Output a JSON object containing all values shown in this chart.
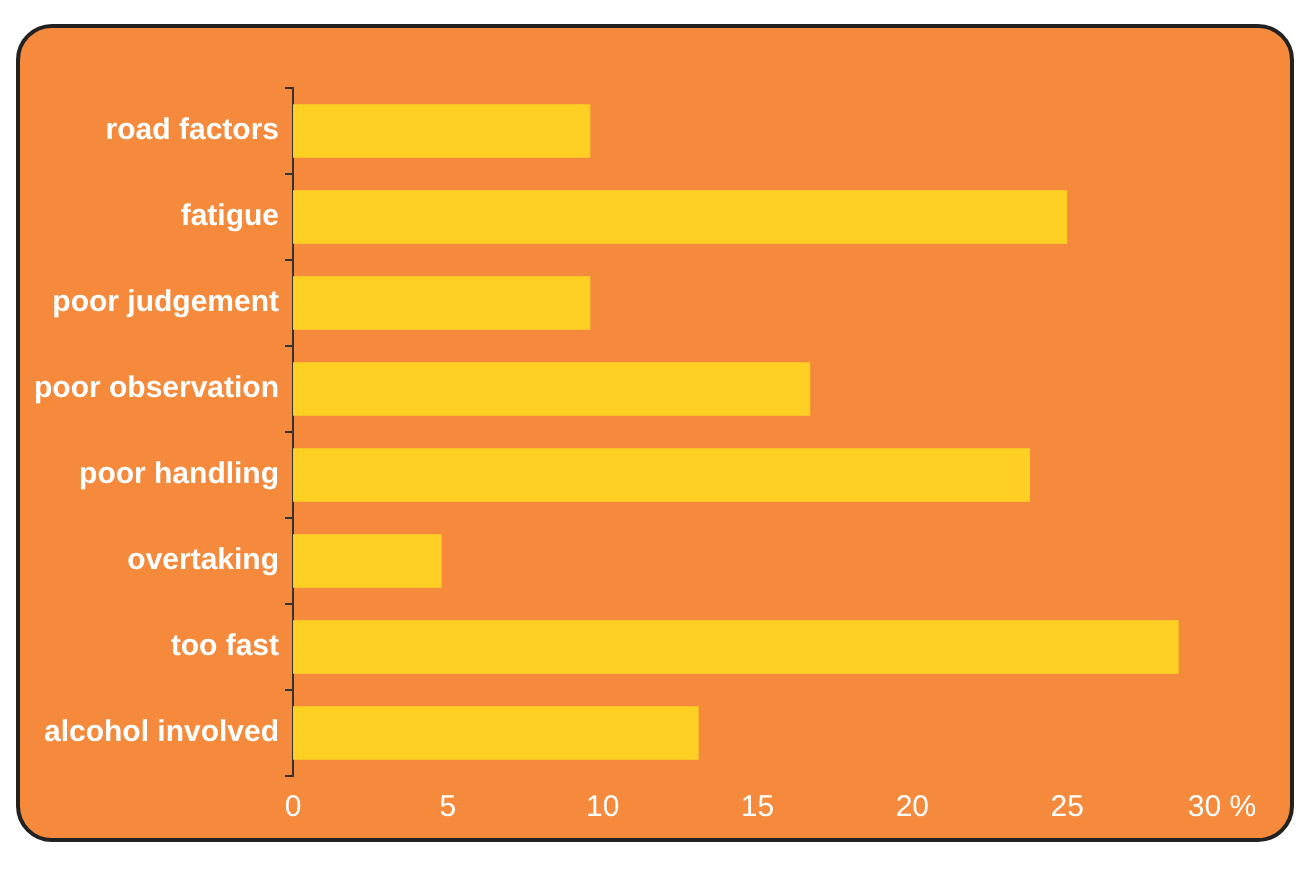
{
  "chart_data": {
    "type": "bar",
    "orientation": "horizontal",
    "categories": [
      "road factors",
      "fatigue",
      "poor judgement",
      "poor observation",
      "poor handling",
      "overtaking",
      "too fast",
      "alcohol involved"
    ],
    "values": [
      9.6,
      25,
      9.6,
      16.7,
      23.8,
      4.8,
      28.6,
      13.1
    ],
    "color": "#fdd023",
    "xlim": [
      0,
      30
    ],
    "xticks": [
      0,
      5,
      10,
      15,
      20,
      25,
      {
        "value": 30,
        "label": "30 %"
      }
    ],
    "grid": false,
    "legend": false
  }
}
